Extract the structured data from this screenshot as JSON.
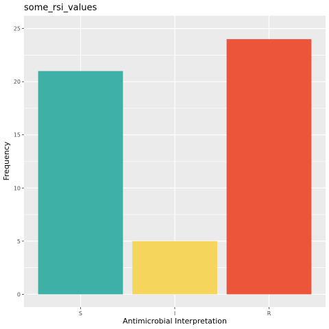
{
  "chart_data": {
    "type": "bar",
    "title": "some_rsi_values",
    "xlabel": "Antimicrobial Interpretation",
    "ylabel": "Frequency",
    "categories": [
      "S",
      "I",
      "R"
    ],
    "values": [
      21,
      5,
      24
    ],
    "colors": [
      "#3EB0A6",
      "#F6D55C",
      "#ED553B"
    ],
    "ylim": [
      0,
      25
    ],
    "yticks": [
      0,
      5,
      10,
      15,
      20,
      25
    ],
    "grid": true,
    "legend": "none",
    "panel_background": "#EBEBEB"
  }
}
